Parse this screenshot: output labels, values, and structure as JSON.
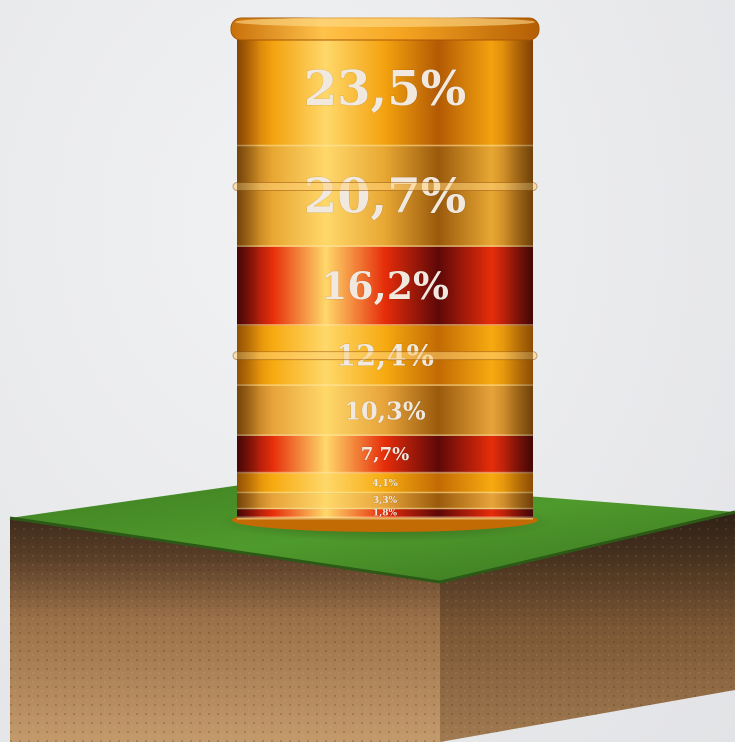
{
  "chart_data": {
    "type": "stacked-bar",
    "title": "",
    "segments": [
      {
        "value": 23.5,
        "label": "23,5%",
        "color": "#f3a20f",
        "shade": "#b35a04"
      },
      {
        "value": 20.7,
        "label": "20,7%",
        "color": "#e8a733",
        "shade": "#9a5a0c"
      },
      {
        "value": 16.2,
        "label": "16,2%",
        "color": "#e62d0a",
        "shade": "#5e0808"
      },
      {
        "value": 12.4,
        "label": "12,4%",
        "color": "#f6aa10",
        "shade": "#c26a04"
      },
      {
        "value": 10.3,
        "label": "10,3%",
        "color": "#e7a33a",
        "shade": "#9a5a0c"
      },
      {
        "value": 7.7,
        "label": "7,7%",
        "color": "#e62d0a",
        "shade": "#5e0808"
      },
      {
        "value": 4.1,
        "label": "4,1%",
        "color": "#f6aa10",
        "shade": "#c26a04"
      },
      {
        "value": 3.3,
        "label": "3,3%",
        "color": "#e7a33a",
        "shade": "#9a5a0c"
      },
      {
        "value": 1.8,
        "label": "1,8%",
        "color": "#e62d0a",
        "shade": "#5e0808"
      }
    ]
  }
}
